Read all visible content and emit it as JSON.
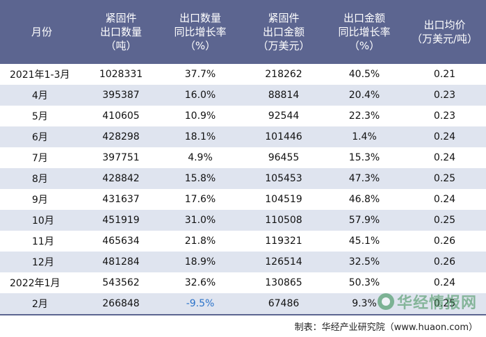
{
  "table": {
    "headers": [
      "月份",
      "紧固件\n出口数量\n（吨）",
      "出口数量\n同比增长率\n（%）",
      "紧固件\n出口金额\n（万美元）",
      "出口金额\n同比增长率\n（%）",
      "出口均价\n（万美元/吨）"
    ],
    "rows": [
      [
        "2021年1-3月",
        "1028331",
        "37.7%",
        "218262",
        "40.5%",
        "0.21"
      ],
      [
        "4月",
        "395387",
        "16.0%",
        "88814",
        "20.4%",
        "0.23"
      ],
      [
        "5月",
        "410605",
        "10.9%",
        "92544",
        "22.3%",
        "0.23"
      ],
      [
        "6月",
        "428298",
        "18.1%",
        "101446",
        "1.4%",
        "0.24"
      ],
      [
        "7月",
        "397751",
        "4.9%",
        "96455",
        "15.3%",
        "0.24"
      ],
      [
        "8月",
        "428842",
        "15.8%",
        "105453",
        "47.3%",
        "0.25"
      ],
      [
        "9月",
        "431637",
        "17.6%",
        "104519",
        "46.8%",
        "0.24"
      ],
      [
        "10月",
        "451919",
        "31.0%",
        "110508",
        "57.9%",
        "0.25"
      ],
      [
        "11月",
        "465634",
        "21.8%",
        "119321",
        "45.1%",
        "0.26"
      ],
      [
        "12月",
        "481284",
        "18.9%",
        "126514",
        "32.5%",
        "0.26"
      ],
      [
        "2022年1月",
        "543562",
        "32.6%",
        "130865",
        "50.3%",
        "0.24"
      ],
      [
        "2月",
        "266848",
        "-9.5%",
        "67486",
        "9.3%",
        "0.25"
      ]
    ]
  },
  "footer": "制表：华经产业研究院（www.huaon.com）",
  "watermark": "华经情报网",
  "colors": {
    "header_bg": "#5c6590",
    "alt_row_bg": "#dfe4ef",
    "negative": "#2a72c9"
  }
}
